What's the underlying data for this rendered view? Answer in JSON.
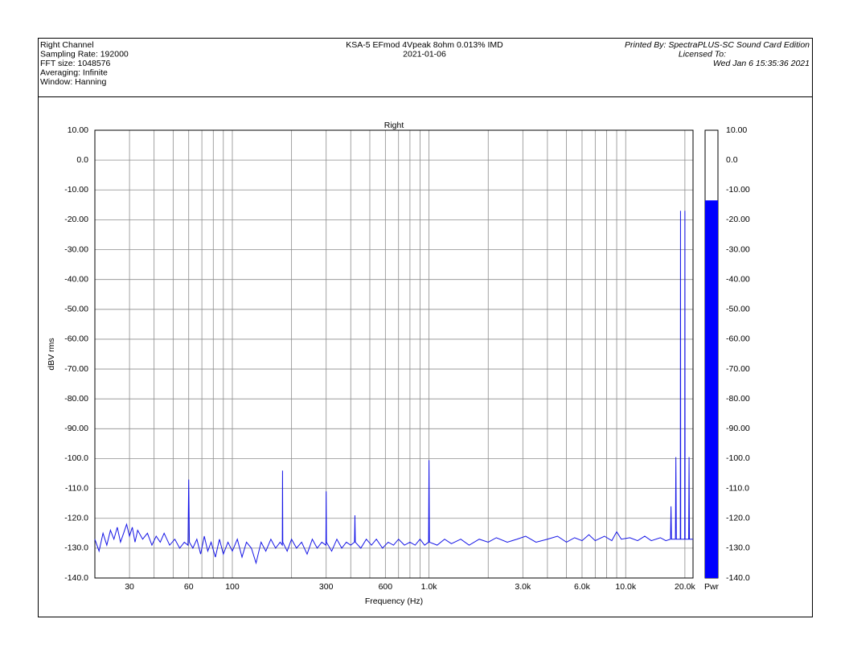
{
  "header": {
    "left": [
      "Right Channel",
      "Sampling Rate: 192000",
      "FFT size: 1048576",
      "Averaging: Infinite",
      "Window: Hanning"
    ],
    "center": [
      "KSA-5 EFmod 4Vpeak 8ohm 0.013% IMD",
      "2021-01-06"
    ],
    "right": [
      "Printed By: SpectraPLUS-SC Sound Card Edition",
      "Licensed To:",
      "Wed Jan  6 15:35:36 2021"
    ]
  },
  "chart_data": {
    "type": "line",
    "title": "Right",
    "x_label": "Frequency (Hz)",
    "y_label": "dBV rms",
    "xscale": "log",
    "grid": true,
    "xlim": [
      20,
      22000
    ],
    "ylim": [
      -140,
      10
    ],
    "xticks": [
      30,
      60,
      100,
      300,
      600,
      {
        "value": 1000,
        "label": "1.0k"
      },
      {
        "value": 3000,
        "label": "3.0k"
      },
      {
        "value": 6000,
        "label": "6.0k"
      },
      {
        "value": 10000,
        "label": "10.0k"
      },
      {
        "value": 20000,
        "label": "20.0k"
      }
    ],
    "xminor": [
      40,
      50,
      70,
      80,
      90,
      200,
      400,
      500,
      700,
      800,
      900,
      2000,
      4000,
      5000,
      7000,
      8000,
      9000
    ],
    "yticks": [
      {
        "value": 10,
        "label": "10.00"
      },
      {
        "value": 0,
        "label": "0.0"
      },
      {
        "value": -10,
        "label": "-10.00"
      },
      {
        "value": -20,
        "label": "-20.00"
      },
      {
        "value": -30,
        "label": "-30.00"
      },
      {
        "value": -40,
        "label": "-40.00"
      },
      {
        "value": -50,
        "label": "-50.00"
      },
      {
        "value": -60,
        "label": "-60.00"
      },
      {
        "value": -70,
        "label": "-70.00"
      },
      {
        "value": -80,
        "label": "-80.00"
      },
      {
        "value": -90,
        "label": "-90.00"
      },
      {
        "value": -100,
        "label": "-100.0"
      },
      {
        "value": -110,
        "label": "-110.0"
      },
      {
        "value": -120,
        "label": "-120.0"
      },
      {
        "value": -130,
        "label": "-130.0"
      },
      {
        "value": -140,
        "label": "-140.0"
      }
    ],
    "x": [
      20,
      21,
      22,
      23,
      24,
      25,
      26,
      27,
      28,
      29,
      30,
      31,
      32,
      33,
      35,
      37,
      39,
      41,
      43,
      45,
      48,
      51,
      54,
      57,
      59.5,
      60,
      60.5,
      63,
      66,
      69,
      72,
      75,
      78,
      82,
      86,
      90,
      95,
      100,
      106,
      112,
      118,
      125,
      132,
      140,
      148,
      157,
      166,
      175,
      179.5,
      180,
      180.5,
      190,
      200,
      212,
      225,
      240,
      255,
      270,
      285,
      299,
      300,
      301,
      320,
      340,
      360,
      380,
      400,
      418,
      420,
      422,
      450,
      480,
      510,
      540,
      580,
      620,
      660,
      700,
      750,
      800,
      850,
      900,
      950,
      995,
      1000,
      1005,
      1100,
      1200,
      1300,
      1450,
      1600,
      1800,
      2000,
      2200,
      2500,
      2800,
      3100,
      3500,
      4000,
      4500,
      5000,
      5500,
      6000,
      6500,
      7000,
      7800,
      8500,
      9000,
      9500,
      10500,
      11500,
      12500,
      13500,
      15000,
      16000,
      16900,
      17000,
      17100,
      17900,
      18000,
      18100,
      18950,
      19000,
      19050,
      19950,
      20000,
      20050,
      20900,
      21000,
      21100,
      22000
    ],
    "series": [
      {
        "name": "Right",
        "color": "#1414e6",
        "values": [
          -127,
          -131,
          -125,
          -129,
          -124,
          -127,
          -123,
          -128,
          -125,
          -122,
          -126,
          -123,
          -128,
          -124,
          -127,
          -125,
          -129,
          -126,
          -128,
          -125,
          -129,
          -127,
          -130,
          -128,
          -129,
          -107,
          -128,
          -130,
          -127,
          -132,
          -126,
          -131,
          -128,
          -133,
          -127,
          -132,
          -128,
          -131,
          -127,
          -133,
          -128,
          -130,
          -135,
          -128,
          -131,
          -127,
          -130,
          -128,
          -129,
          -104,
          -128,
          -131,
          -127,
          -130,
          -128,
          -132,
          -127,
          -130,
          -128,
          -129,
          -111,
          -128,
          -131,
          -127,
          -130,
          -128,
          -129,
          -128,
          -119,
          -128,
          -130,
          -127,
          -129,
          -127,
          -130,
          -128,
          -129,
          -127,
          -129,
          -128,
          -129,
          -127,
          -129,
          -128,
          -100.5,
          -128,
          -129,
          -127,
          -128.5,
          -127,
          -129,
          -127,
          -128,
          -126.5,
          -128,
          -127,
          -126,
          -128,
          -127,
          -126,
          -128,
          -126.5,
          -127.5,
          -125.5,
          -127.5,
          -126,
          -127.5,
          -124.5,
          -127,
          -126.5,
          -127.5,
          -126,
          -127.5,
          -126.5,
          -127.5,
          -127,
          -116,
          -127,
          -127,
          -99.5,
          -127,
          -127,
          -17,
          -127,
          -127,
          -17,
          -127,
          -127,
          -99.5,
          -127,
          -127
        ]
      }
    ],
    "meter": {
      "label": "Pwr",
      "value": -13.5,
      "color": "#0000ff"
    }
  }
}
